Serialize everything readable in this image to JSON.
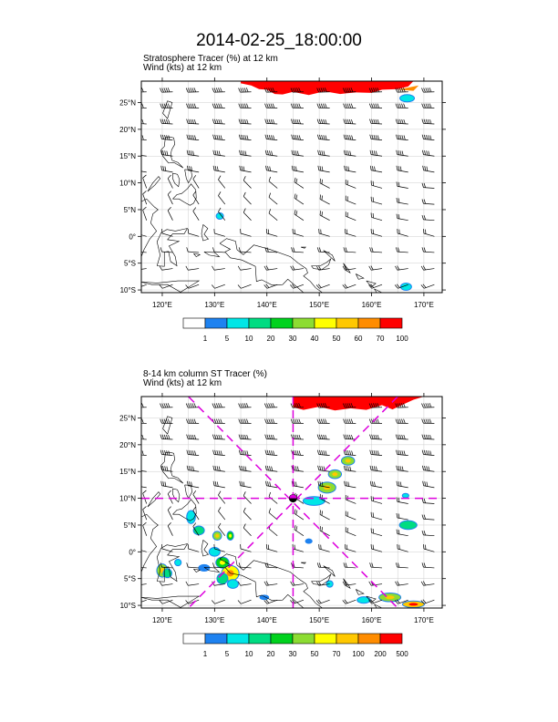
{
  "page_title": "2014-02-25_18:00:00",
  "panels": [
    {
      "subtitle_line1": "Stratosphere Tracer   (%)     at   12 km",
      "subtitle_line2": "Wind    (kts)     at   12 km",
      "lat_labels": [
        "25°N",
        "20°N",
        "15°N",
        "10°N",
        "5°N",
        "0°",
        "5°S",
        "10°S"
      ],
      "lon_labels": [
        "120°E",
        "130°E",
        "140°E",
        "150°E",
        "160°E",
        "170°E"
      ],
      "colorbar_labels": [
        "1",
        "5",
        "10",
        "20",
        "30",
        "40",
        "50",
        "60",
        "70",
        "100"
      ],
      "colorbar_colors": [
        "#ffffff",
        "#1e82f0",
        "#00e6e6",
        "#00dc82",
        "#00d21e",
        "#8cdc32",
        "#ffff00",
        "#ffc800",
        "#ff8c00",
        "#ff0000"
      ]
    },
    {
      "subtitle_line1": "8-14 km column ST Tracer    (%)",
      "subtitle_line2": "Wind    (kts)     at   12 km",
      "lat_labels": [
        "25°N",
        "20°N",
        "15°N",
        "10°N",
        "5°N",
        "0°",
        "5°S",
        "10°S"
      ],
      "lon_labels": [
        "120°E",
        "130°E",
        "140°E",
        "150°E",
        "160°E",
        "170°E"
      ],
      "colorbar_labels": [
        "1",
        "5",
        "10",
        "20",
        "30",
        "50",
        "70",
        "100",
        "200",
        "500"
      ],
      "colorbar_colors": [
        "#ffffff",
        "#1e82f0",
        "#00e6e6",
        "#00dc82",
        "#00d21e",
        "#8cdc32",
        "#ffff00",
        "#ffc800",
        "#ff8c00",
        "#ff0000"
      ]
    }
  ],
  "map": {
    "lon_range": [
      116,
      173.5
    ],
    "lat_range": [
      -10.5,
      29
    ],
    "lat_ticks": [
      25,
      20,
      15,
      10,
      5,
      0,
      -5,
      -10
    ],
    "lon_ticks": [
      120,
      130,
      140,
      150,
      160,
      170
    ],
    "gridlines": true,
    "coastline_color": "#000000",
    "grid_color": "#cccccc",
    "marker_color": "#dd00dd",
    "storm_center": {
      "lon": 145,
      "lat": 10
    }
  }
}
